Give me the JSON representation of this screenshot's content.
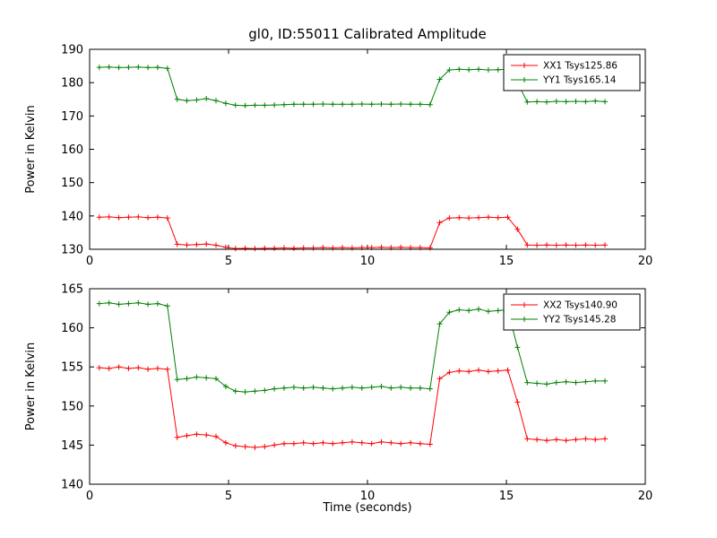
{
  "figure": {
    "title": "gl0, ID:55011 Calibrated Amplitude",
    "background": "#ffffff",
    "frame_color": "#000000",
    "text_color": "#000000"
  },
  "chart_data": [
    {
      "type": "line",
      "title": "gl0, ID:55011 Calibrated Amplitude",
      "xlabel": "",
      "ylabel": "Power in Kelvin",
      "xlim": [
        0,
        20
      ],
      "ylim": [
        130,
        190
      ],
      "xticks": [
        0,
        5,
        10,
        15,
        20
      ],
      "yticks": [
        130,
        140,
        150,
        160,
        170,
        180,
        190
      ],
      "grid": false,
      "marker": "+",
      "legend_position": "upper right",
      "x": [
        0.35,
        0.7,
        1.05,
        1.4,
        1.75,
        2.1,
        2.45,
        2.8,
        3.15,
        3.5,
        3.85,
        4.2,
        4.55,
        4.9,
        5.25,
        5.6,
        5.95,
        6.3,
        6.65,
        7,
        7.35,
        7.7,
        8.05,
        8.4,
        8.75,
        9.1,
        9.45,
        9.8,
        10.15,
        10.5,
        10.85,
        11.2,
        11.55,
        11.9,
        12.25,
        12.6,
        12.95,
        13.3,
        13.65,
        14,
        14.35,
        14.7,
        15.05,
        15.4,
        15.75,
        16.1,
        16.45,
        16.8,
        17.15,
        17.5,
        17.85,
        18.2,
        18.55
      ],
      "series": [
        {
          "name": "XX1 Tsys125.86",
          "color": "#ff0000",
          "values": [
            139.6,
            139.7,
            139.5,
            139.6,
            139.7,
            139.5,
            139.6,
            139.4,
            131.5,
            131.3,
            131.4,
            131.6,
            131.2,
            130.6,
            130.2,
            130.3,
            130.2,
            130.3,
            130.3,
            130.4,
            130.3,
            130.4,
            130.4,
            130.5,
            130.4,
            130.5,
            130.4,
            130.5,
            130.5,
            130.6,
            130.5,
            130.6,
            130.5,
            130.5,
            130.4,
            138.0,
            139.4,
            139.5,
            139.4,
            139.5,
            139.6,
            139.5,
            139.6,
            136.0,
            131.3,
            131.2,
            131.3,
            131.2,
            131.3,
            131.2,
            131.3,
            131.2,
            131.3
          ]
        },
        {
          "name": "YY1 Tsys165.14",
          "color": "#008000",
          "values": [
            184.6,
            184.7,
            184.5,
            184.6,
            184.7,
            184.5,
            184.6,
            184.3,
            175.0,
            174.6,
            174.8,
            175.2,
            174.6,
            173.8,
            173.2,
            173.1,
            173.2,
            173.2,
            173.3,
            173.4,
            173.5,
            173.5,
            173.5,
            173.6,
            173.5,
            173.5,
            173.5,
            173.6,
            173.5,
            173.6,
            173.5,
            173.6,
            173.5,
            173.5,
            173.4,
            181.0,
            183.8,
            184.0,
            183.9,
            184.0,
            183.8,
            183.9,
            184.0,
            180.0,
            174.2,
            174.3,
            174.2,
            174.4,
            174.3,
            174.4,
            174.3,
            174.5,
            174.3
          ]
        }
      ]
    },
    {
      "type": "line",
      "title": "",
      "xlabel": "Time (seconds)",
      "ylabel": "Power in Kelvin",
      "xlim": [
        0,
        20
      ],
      "ylim": [
        140,
        165
      ],
      "xticks": [
        0,
        5,
        10,
        15,
        20
      ],
      "yticks": [
        140,
        145,
        150,
        155,
        160,
        165
      ],
      "grid": false,
      "marker": "+",
      "legend_position": "upper right",
      "x": [
        0.35,
        0.7,
        1.05,
        1.4,
        1.75,
        2.1,
        2.45,
        2.8,
        3.15,
        3.5,
        3.85,
        4.2,
        4.55,
        4.9,
        5.25,
        5.6,
        5.95,
        6.3,
        6.65,
        7,
        7.35,
        7.7,
        8.05,
        8.4,
        8.75,
        9.1,
        9.45,
        9.8,
        10.15,
        10.5,
        10.85,
        11.2,
        11.55,
        11.9,
        12.25,
        12.6,
        12.95,
        13.3,
        13.65,
        14,
        14.35,
        14.7,
        15.05,
        15.4,
        15.75,
        16.1,
        16.45,
        16.8,
        17.15,
        17.5,
        17.85,
        18.2,
        18.55
      ],
      "series": [
        {
          "name": "XX2 Tsys140.90",
          "color": "#ff0000",
          "values": [
            154.9,
            154.8,
            155.0,
            154.8,
            154.9,
            154.7,
            154.8,
            154.7,
            146.0,
            146.2,
            146.4,
            146.3,
            146.1,
            145.3,
            144.9,
            144.8,
            144.7,
            144.8,
            145.0,
            145.2,
            145.2,
            145.3,
            145.2,
            145.3,
            145.2,
            145.3,
            145.4,
            145.3,
            145.2,
            145.4,
            145.3,
            145.2,
            145.3,
            145.2,
            145.1,
            153.5,
            154.3,
            154.5,
            154.4,
            154.6,
            154.4,
            154.5,
            154.6,
            150.5,
            145.8,
            145.7,
            145.6,
            145.7,
            145.6,
            145.7,
            145.8,
            145.7,
            145.8
          ]
        },
        {
          "name": "YY2 Tsys145.28",
          "color": "#008000",
          "values": [
            163.1,
            163.2,
            163.0,
            163.1,
            163.2,
            163.0,
            163.1,
            162.8,
            153.4,
            153.5,
            153.7,
            153.6,
            153.5,
            152.5,
            151.9,
            151.8,
            151.9,
            152.0,
            152.2,
            152.3,
            152.4,
            152.3,
            152.4,
            152.3,
            152.2,
            152.3,
            152.4,
            152.3,
            152.4,
            152.5,
            152.3,
            152.4,
            152.3,
            152.3,
            152.2,
            160.5,
            162.0,
            162.3,
            162.2,
            162.4,
            162.1,
            162.2,
            162.3,
            157.5,
            153.0,
            152.9,
            152.8,
            153.0,
            153.1,
            153.0,
            153.1,
            153.2,
            153.2
          ]
        }
      ]
    }
  ]
}
